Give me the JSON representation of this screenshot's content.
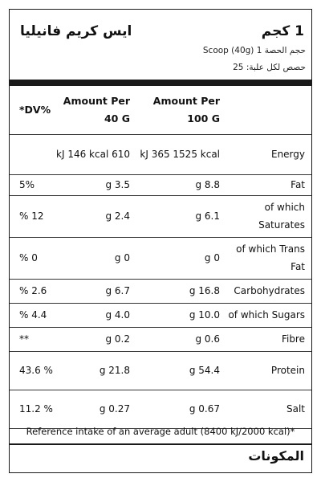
{
  "header": {
    "weight": "1 كجم",
    "product_name": "ايس كريم فانيليا",
    "serving_size": "حجم الحصة 1 Scoop (40g)",
    "servings_per_pack": "حصص لكل علبة: 25"
  },
  "table": {
    "headers": {
      "dv": "*DV%",
      "per40": "Amount Per 40 G",
      "per100": "Amount Per 100 G",
      "nutrient": ""
    },
    "rows": [
      {
        "name": "Energy",
        "per100": "kJ 365 1525 kcal",
        "per40": "kJ 146 kcal 610",
        "dv": ""
      },
      {
        "name": "Fat",
        "per100": "g 8.8",
        "per40": "g 3.5",
        "dv": "5%"
      },
      {
        "name": "of which Saturates",
        "per100": "g 6.1",
        "per40": "g 2.4",
        "dv": "% 12"
      },
      {
        "name": "of which Trans Fat",
        "per100": "g 0",
        "per40": "g 0",
        "dv": "% 0"
      },
      {
        "name": "Carbohydrates",
        "per100": "g 16.8",
        "per40": "g 6.7",
        "dv": "% 2.6"
      },
      {
        "name": "of which Sugars",
        "per100": "g 10.0",
        "per40": "g 4.0",
        "dv": "% 4.4"
      },
      {
        "name": "Fibre",
        "per100": "g 0.6",
        "per40": "g 0.2",
        "dv": "**"
      },
      {
        "name": "Protein",
        "per100": "g 54.4",
        "per40": "g 21.8",
        "dv": "43.6 %"
      },
      {
        "name": "Salt",
        "per100": "g 0.67",
        "per40": "g 0.27",
        "dv": "11.2 %"
      }
    ]
  },
  "footnote": "Reference intake of an average adult (8400 kJ/2000 kcal)*",
  "ingredients_heading": "المكونات"
}
